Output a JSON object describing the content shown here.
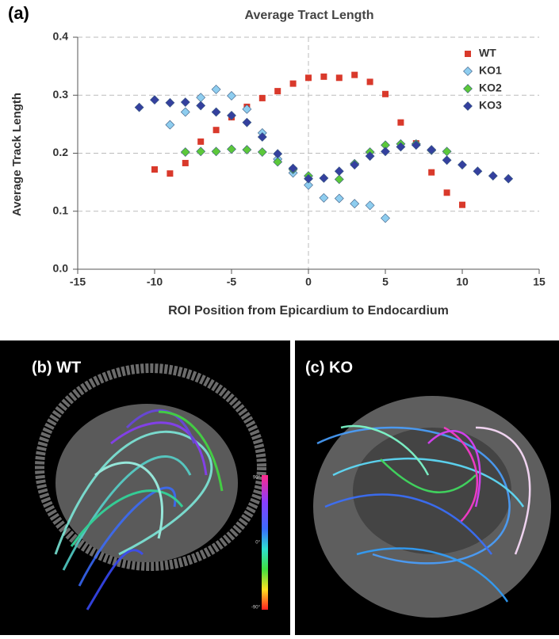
{
  "panel_label": "(a)",
  "chart_data": {
    "type": "scatter",
    "title": "Average Tract Length",
    "x_label": "ROI Position from Epicardium to Endocardium",
    "y_label": "Average Track Length",
    "xlim": [
      -15,
      15
    ],
    "xticks": [
      -15,
      -10,
      -5,
      0,
      5,
      10,
      15
    ],
    "ylim": [
      0,
      0.4
    ],
    "yticks": [
      {
        "value": 0,
        "label": "0.0"
      },
      0.1,
      0.2,
      0.3,
      0.4
    ],
    "grid": true,
    "legend": "upper right",
    "series": [
      {
        "name": "WT",
        "color": "#d9392b",
        "marker": "square",
        "x": [
          -10,
          -9,
          -8,
          -7,
          -6,
          -5,
          -4,
          -3,
          -2,
          -1,
          0,
          1,
          2,
          3,
          4,
          5,
          6,
          7,
          8,
          9,
          10
        ],
        "values": [
          0.172,
          0.165,
          0.183,
          0.22,
          0.24,
          0.262,
          0.28,
          0.295,
          0.307,
          0.32,
          0.33,
          0.332,
          0.33,
          0.335,
          0.323,
          0.302,
          0.253,
          0.217,
          0.167,
          0.132,
          0.111
        ]
      },
      {
        "name": "KO1",
        "color": "#8ecdef",
        "marker": "diamond",
        "x": [
          -9,
          -8,
          -7,
          -6,
          -5,
          -4,
          -3,
          -2,
          -1,
          0,
          1,
          2,
          3,
          4,
          5
        ],
        "values": [
          0.249,
          0.271,
          0.296,
          0.31,
          0.299,
          0.276,
          0.235,
          0.19,
          0.166,
          0.145,
          0.123,
          0.122,
          0.113,
          0.11,
          0.088
        ]
      },
      {
        "name": "KO2",
        "color": "#5cc83a",
        "marker": "diamond",
        "x": [
          -8,
          -7,
          -6,
          -5,
          -4,
          -3,
          -2,
          -1,
          0,
          2,
          3,
          4,
          5,
          6,
          7,
          8,
          9
        ],
        "values": [
          0.202,
          0.203,
          0.203,
          0.207,
          0.206,
          0.202,
          0.185,
          0.172,
          0.161,
          0.155,
          0.182,
          0.202,
          0.214,
          0.216,
          0.216,
          0.205,
          0.203
        ]
      },
      {
        "name": "KO3",
        "color": "#34409e",
        "marker": "diamond",
        "x": [
          -11,
          -10,
          -9,
          -8,
          -7,
          -6,
          -5,
          -4,
          -3,
          -2,
          -1,
          0,
          1,
          2,
          3,
          4,
          5,
          6,
          7,
          8,
          9,
          10,
          11,
          12,
          13
        ],
        "values": [
          0.279,
          0.292,
          0.287,
          0.288,
          0.282,
          0.271,
          0.265,
          0.253,
          0.228,
          0.199,
          0.174,
          0.156,
          0.157,
          0.169,
          0.18,
          0.195,
          0.203,
          0.211,
          0.214,
          0.206,
          0.188,
          0.18,
          0.169,
          0.161,
          0.156
        ]
      }
    ]
  },
  "panels": [
    {
      "label": "(b) WT",
      "colorbar_labels": [
        "90°",
        "0°",
        "-90°"
      ]
    },
    {
      "label": "(c) KO"
    }
  ]
}
